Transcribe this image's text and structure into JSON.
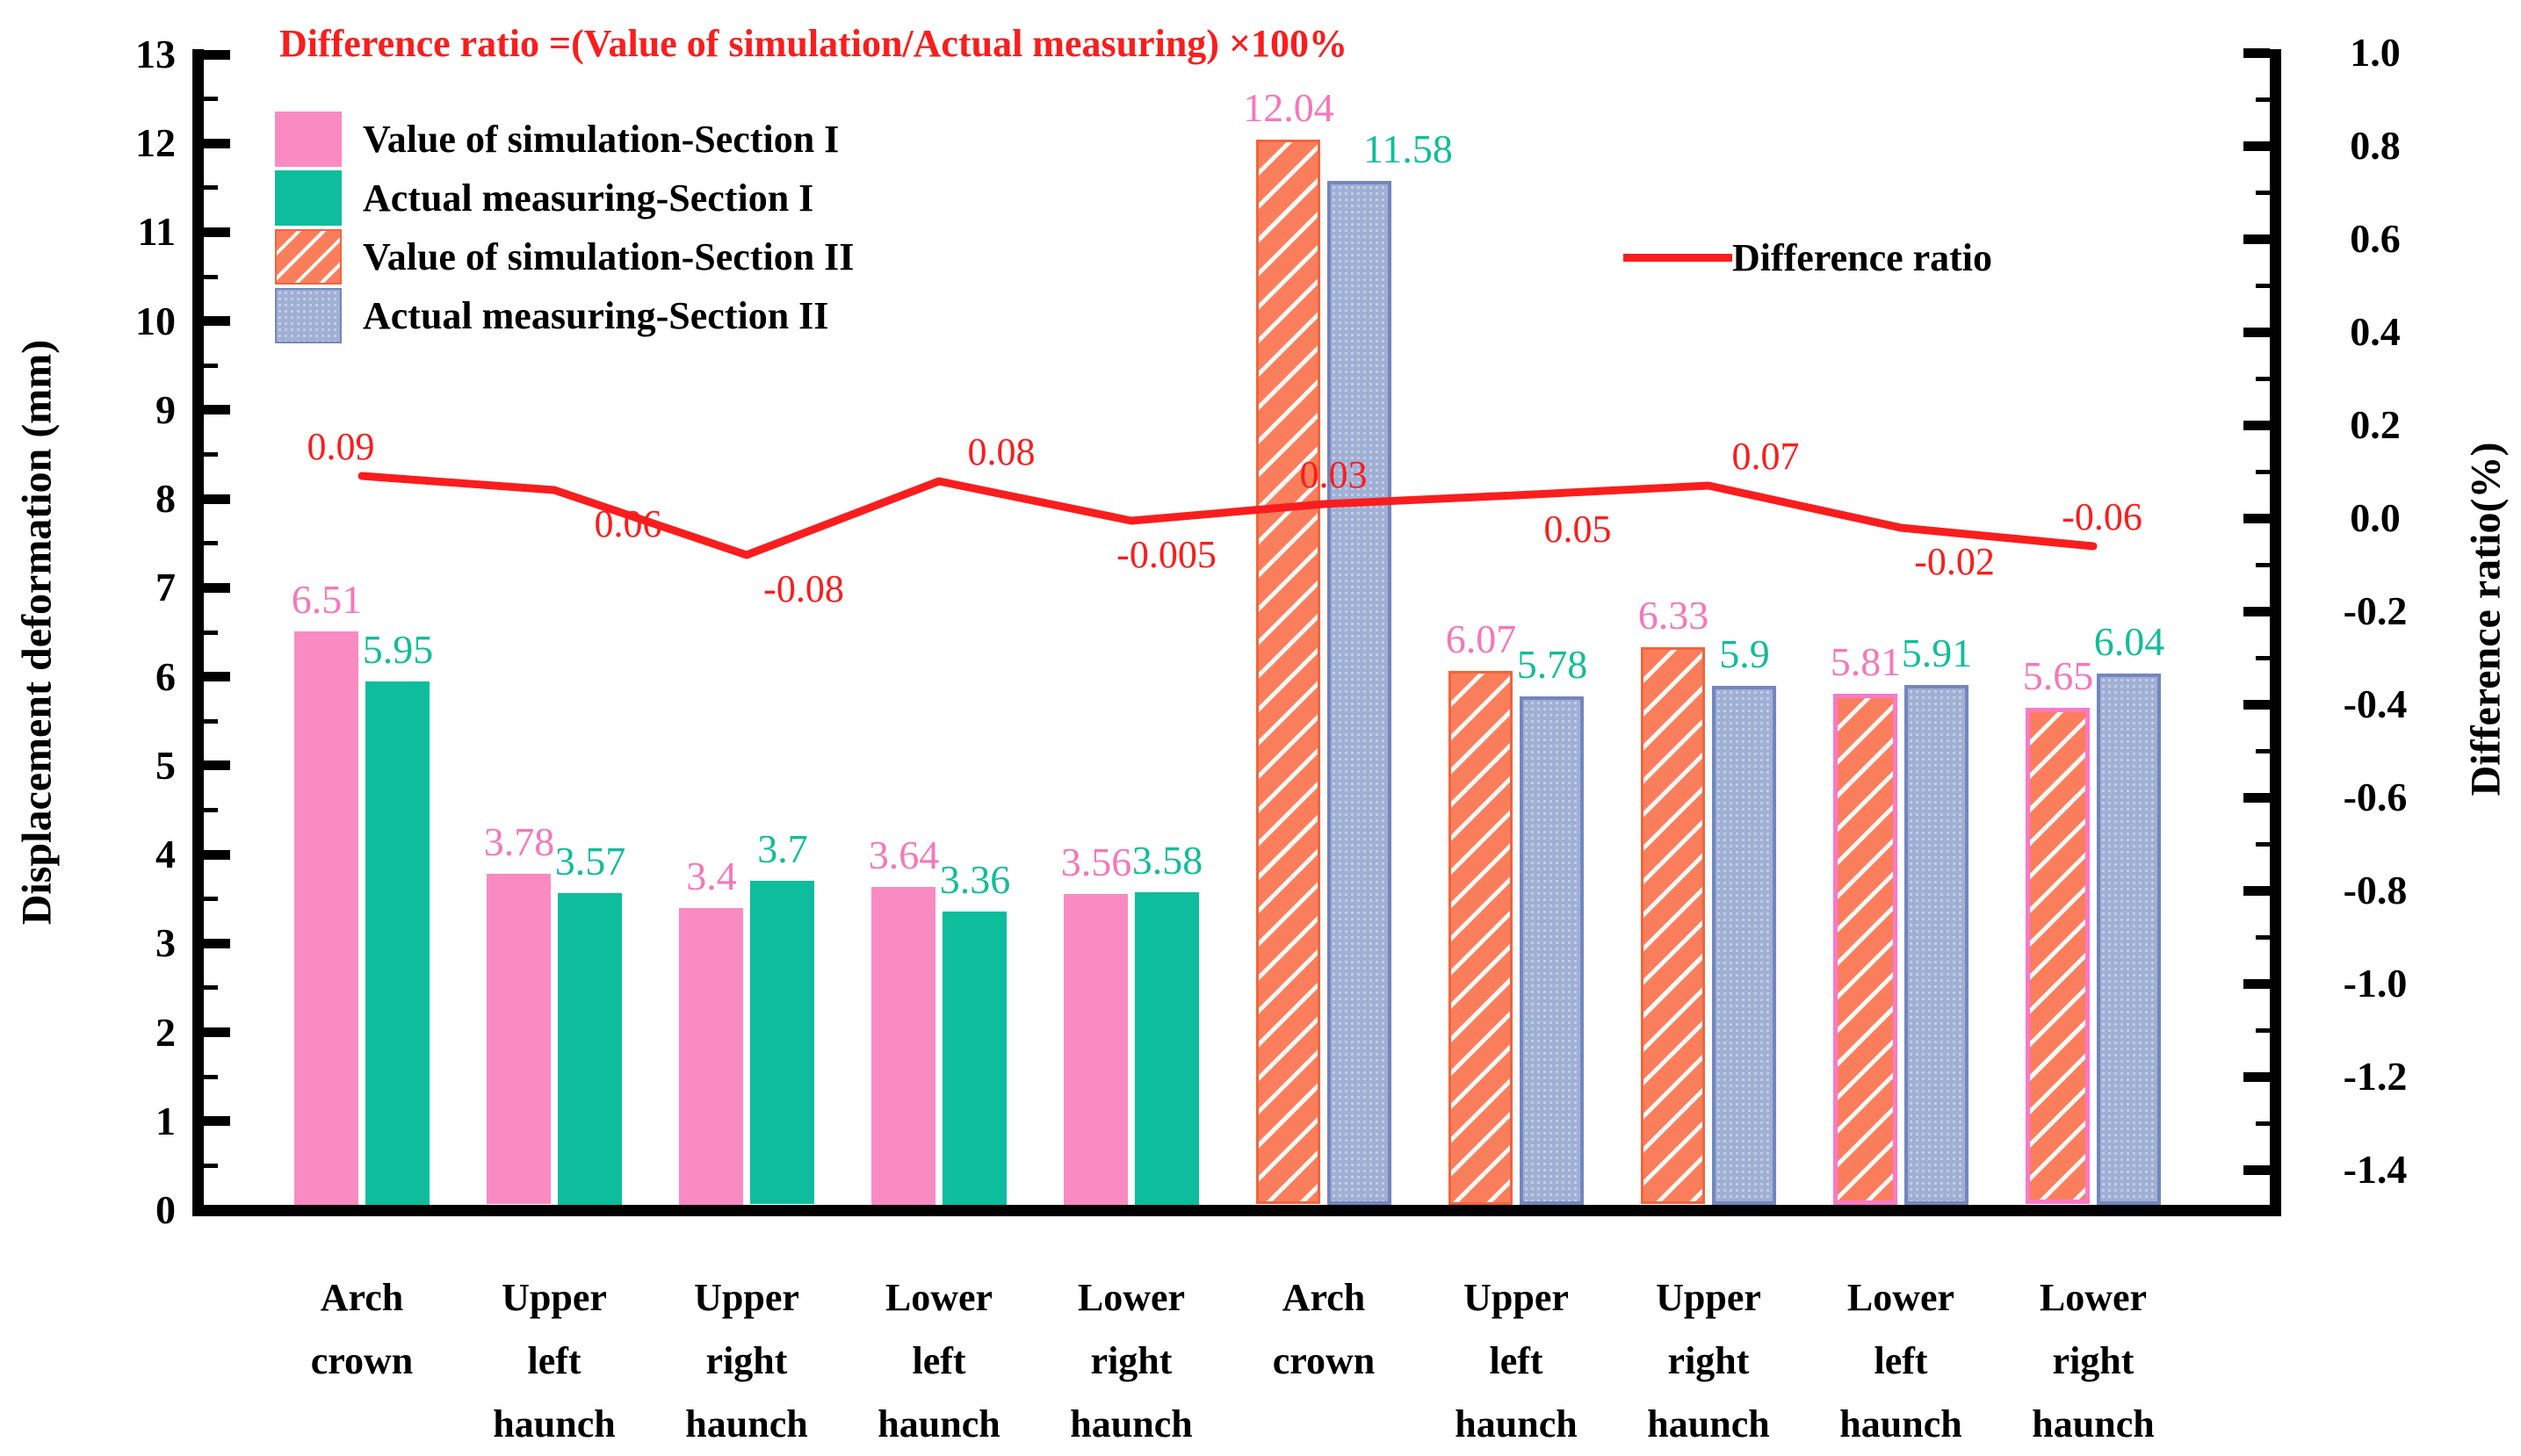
{
  "title": {
    "text": "Difference ratio =(Value of simulation/Actual measuring)  ×100%",
    "color": "#fa1d1d"
  },
  "legend": {
    "bars": [
      {
        "label": "Value of simulation-Section I",
        "style": "pink"
      },
      {
        "label": "Actual measuring-Section I",
        "style": "teal"
      },
      {
        "label": "Value of simulation-Section II",
        "style": "orange-hatch"
      },
      {
        "label": "Actual measuring-Section II",
        "style": "blue-dot"
      }
    ],
    "line": {
      "label": "Difference ratio",
      "color": "#fa1d1d"
    }
  },
  "chart_data": {
    "type": "bar+line",
    "title": "Difference ratio =(Value of simulation/Actual measuring)  ×100%",
    "categories": [
      "Arch crown",
      "Upper left haunch",
      "Upper right haunch",
      "Lower left haunch",
      "Lower right haunch",
      "Arch crown",
      "Upper left haunch",
      "Upper right haunch",
      "Lower left haunch",
      "Lower right haunch"
    ],
    "series": [
      {
        "name": "Value of simulation-Section I",
        "type": "bar",
        "color": "#f98bc2",
        "values": [
          6.51,
          3.78,
          3.4,
          3.64,
          3.56,
          null,
          null,
          null,
          null,
          null
        ]
      },
      {
        "name": "Actual measuring-Section I",
        "type": "bar",
        "color": "#0dbd9c",
        "values": [
          5.95,
          3.57,
          3.7,
          3.36,
          3.58,
          null,
          null,
          null,
          null,
          null
        ]
      },
      {
        "name": "Value of simulation-Section II",
        "type": "bar",
        "color": "#fa7e5b",
        "hatch": "white-diagonal",
        "values": [
          null,
          null,
          null,
          null,
          null,
          12.04,
          6.07,
          6.33,
          5.81,
          5.65
        ]
      },
      {
        "name": "Actual measuring-Section II",
        "type": "bar",
        "color": "#a0b0d4",
        "values": [
          null,
          null,
          null,
          null,
          null,
          11.58,
          5.78,
          5.9,
          5.91,
          6.04
        ]
      },
      {
        "name": "Difference ratio",
        "type": "line",
        "color": "#fa1d1d",
        "values": [
          0.09,
          0.06,
          -0.08,
          0.08,
          -0.005,
          0.03,
          0.05,
          0.07,
          -0.02,
          -0.06
        ]
      }
    ],
    "sim_values": [
      6.51,
      3.78,
      3.4,
      3.64,
      3.56,
      12.04,
      6.07,
      6.33,
      5.81,
      5.65
    ],
    "act_values": [
      5.95,
      3.57,
      3.7,
      3.36,
      3.58,
      11.58,
      5.78,
      5.9,
      5.91,
      6.04
    ],
    "sim_labels": [
      "6.51",
      "3.78",
      "3.4",
      "3.64",
      "3.56",
      "12.04",
      "6.07",
      "6.33",
      "5.81",
      "5.65"
    ],
    "act_labels": [
      "5.95",
      "3.57",
      "3.7",
      "3.36",
      "3.58",
      "11.58",
      "5.78",
      "5.9",
      "5.91",
      "6.04"
    ],
    "ratio_values": [
      0.09,
      0.06,
      -0.08,
      0.08,
      -0.005,
      0.03,
      0.05,
      0.07,
      -0.02,
      -0.06
    ],
    "ratio_labels": [
      "0.09",
      "0.06",
      "-0.08",
      "0.08",
      "-0.005",
      "0.03",
      "0.05",
      "0.07",
      "-0.02",
      "-0.06"
    ],
    "left_axis": {
      "label": "Displacement deformation (mm)",
      "min": 0,
      "max": 13,
      "major_step": 1,
      "minor_step": 0.5,
      "tick_labels": [
        "0",
        "1",
        "2",
        "3",
        "4",
        "5",
        "6",
        "7",
        "8",
        "9",
        "10",
        "11",
        "12",
        "13"
      ]
    },
    "right_axis": {
      "label": "Difference ratio(%)",
      "top": 1.0,
      "major_step": 0.2,
      "minor_step": 0.1,
      "last_major": -1.4,
      "tick_labels": [
        "1.0",
        "0.8",
        "0.6",
        "0.4",
        "0.2",
        "0.0",
        "-0.2",
        "-0.4",
        "-0.6",
        "-0.8",
        "-1.0",
        "-1.2",
        "-1.4"
      ]
    },
    "grid": false,
    "legend_position": "upper-left-and-middle-right",
    "styles": {
      "sim_section1_color": "#f98bc2",
      "act_section1_color": "#0dbd9c",
      "sim_section2_color": "#fa7e5b",
      "act_section2_fill": "#a0b0d4",
      "act_section2_edge": "#7486be",
      "pink_edge_color": "#fb79c6",
      "pink_edge_groups": [
        8,
        9
      ],
      "line_color": "#fa1d1d",
      "sim_label_color": "#f776ba",
      "act_label_color": "#12bd99"
    }
  }
}
